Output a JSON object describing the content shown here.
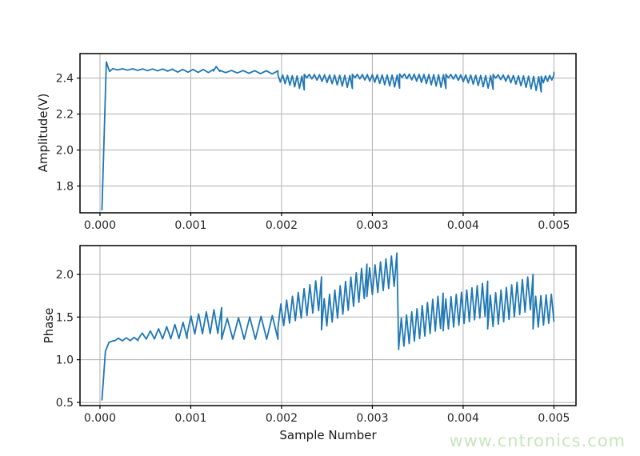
{
  "figure": {
    "background": "#ffffff"
  },
  "watermark": {
    "text": "www.cntronics.com",
    "color": "#c8e5bb"
  },
  "chart_data": [
    {
      "type": "line",
      "title": "",
      "ylabel": "Amplitude(V)",
      "xlabel": "",
      "xlim": [
        -0.00022,
        0.005243
      ],
      "ylim": [
        1.651,
        2.536
      ],
      "grid": true,
      "legend": "none",
      "line_color": "#1f77b4",
      "grid_color": "#b0b0b0",
      "spine_color": "#000000",
      "tick_color": "#262626",
      "xticks": [
        {
          "v": 0.0,
          "label": "0.000"
        },
        {
          "v": 0.001,
          "label": "0.001"
        },
        {
          "v": 0.002,
          "label": "0.002"
        },
        {
          "v": 0.003,
          "label": "0.003"
        },
        {
          "v": 0.004,
          "label": "0.004"
        },
        {
          "v": 0.005,
          "label": "0.005"
        }
      ],
      "yticks": [
        {
          "v": 1.8,
          "label": "1.8"
        },
        {
          "v": 2.0,
          "label": "2.0"
        },
        {
          "v": 2.2,
          "label": "2.2"
        },
        {
          "v": 2.4,
          "label": "2.4"
        }
      ],
      "series": [
        {
          "name": "amplitude",
          "segments": [
            {
              "x0": 2.2e-05,
              "y0": 1.668,
              "x1": 7e-05,
              "y1": 2.49,
              "teeth": 0
            },
            {
              "x0": 7e-05,
              "y0": 2.49,
              "x1": 0.000105,
              "y1": 2.437,
              "teeth": 0
            },
            {
              "x0": 0.000105,
              "y0": 2.437,
              "x1": 0.00014,
              "y1": 2.452,
              "teeth": 0
            },
            {
              "x0": 0.00014,
              "y0": 2.449,
              "x1": 0.0008,
              "y1": 2.444,
              "a0": 0.003,
              "a1": 0.006,
              "teeth": 6,
              "start": "high"
            },
            {
              "x0": 0.0008,
              "y0": 2.441,
              "x1": 0.00125,
              "y1": 2.439,
              "a0": 0.007,
              "a1": 0.009,
              "teeth": 4,
              "start": "high"
            },
            {
              "x0": 0.00125,
              "y0": 2.439,
              "x1": 0.00128,
              "y1": 2.464,
              "teeth": 0
            },
            {
              "x0": 0.00128,
              "y0": 2.464,
              "x1": 0.00132,
              "y1": 2.437,
              "teeth": 0
            },
            {
              "x0": 0.00132,
              "y0": 2.437,
              "x1": 0.00196,
              "y1": 2.431,
              "a0": 0.006,
              "a1": 0.009,
              "teeth": 5,
              "start": "high"
            },
            {
              "x0": 0.00196,
              "y0": 2.4,
              "x1": 0.00225,
              "y1": 2.372,
              "a0": 0.018,
              "a1": 0.038,
              "teeth": 5,
              "start": "high",
              "end": "low"
            },
            {
              "x0": 0.00225,
              "y0": 2.413,
              "x1": 0.00278,
              "y1": 2.378,
              "a0": 0.008,
              "a1": 0.036,
              "teeth": 9,
              "start": "high",
              "end": "low"
            },
            {
              "x0": 0.00278,
              "y0": 2.413,
              "x1": 0.0033,
              "y1": 2.38,
              "a0": 0.008,
              "a1": 0.036,
              "teeth": 9,
              "start": "high",
              "end": "low"
            },
            {
              "x0": 0.0033,
              "y0": 2.415,
              "x1": 0.00381,
              "y1": 2.38,
              "a0": 0.008,
              "a1": 0.038,
              "teeth": 9,
              "start": "high",
              "end": "low"
            },
            {
              "x0": 0.00381,
              "y0": 2.413,
              "x1": 0.00433,
              "y1": 2.375,
              "a0": 0.008,
              "a1": 0.038,
              "teeth": 9,
              "start": "high",
              "end": "low"
            },
            {
              "x0": 0.00433,
              "y0": 2.412,
              "x1": 0.00486,
              "y1": 2.365,
              "a0": 0.008,
              "a1": 0.042,
              "teeth": 9,
              "start": "high",
              "end": "low"
            },
            {
              "x0": 0.00486,
              "y0": 2.39,
              "x1": 0.005,
              "y1": 2.405,
              "a0": 0.02,
              "a1": 0.012,
              "teeth": 3,
              "start": "high"
            },
            {
              "x0": 0.005,
              "y0": 2.417,
              "x1": 0.005,
              "y1": 2.432,
              "teeth": 0
            }
          ]
        }
      ]
    },
    {
      "type": "line",
      "title": "",
      "ylabel": "Phase",
      "xlabel": "Sample Number",
      "xlim": [
        -0.00022,
        0.005243
      ],
      "ylim": [
        0.4625,
        2.337
      ],
      "grid": true,
      "legend": "none",
      "line_color": "#1f77b4",
      "grid_color": "#b0b0b0",
      "spine_color": "#000000",
      "tick_color": "#262626",
      "xticks": [
        {
          "v": 0.0,
          "label": "0.000"
        },
        {
          "v": 0.001,
          "label": "0.001"
        },
        {
          "v": 0.002,
          "label": "0.002"
        },
        {
          "v": 0.003,
          "label": "0.003"
        },
        {
          "v": 0.004,
          "label": "0.004"
        },
        {
          "v": 0.005,
          "label": "0.005"
        }
      ],
      "yticks": [
        {
          "v": 0.5,
          "label": "0.5"
        },
        {
          "v": 1.0,
          "label": "1.0"
        },
        {
          "v": 1.5,
          "label": "1.5"
        },
        {
          "v": 2.0,
          "label": "2.0"
        }
      ],
      "series": [
        {
          "name": "phase",
          "segments": [
            {
              "x0": 2.2e-05,
              "y0": 0.53,
              "x1": 6e-05,
              "y1": 1.1,
              "teeth": 0
            },
            {
              "x0": 6e-05,
              "y0": 1.1,
              "x1": 0.0001,
              "y1": 1.205,
              "teeth": 0
            },
            {
              "x0": 0.0001,
              "y0": 1.205,
              "x1": 0.00016,
              "y1": 1.225,
              "teeth": 0
            },
            {
              "x0": 0.00016,
              "y0": 1.235,
              "x1": 0.00042,
              "y1": 1.245,
              "a0": 0.015,
              "a1": 0.02,
              "teeth": 3,
              "start": "low"
            },
            {
              "x0": 0.00042,
              "y0": 1.27,
              "x1": 0.00096,
              "y1": 1.35,
              "a0": 0.03,
              "a1": 0.1,
              "teeth": 6,
              "start": "low"
            },
            {
              "x0": 0.00096,
              "y0": 1.4,
              "x1": 0.00134,
              "y1": 1.46,
              "a0": 0.1,
              "a1": 0.15,
              "teeth": 4,
              "start": "low",
              "end": "high"
            },
            {
              "x0": 0.00134,
              "y0": 1.36,
              "x1": 0.00196,
              "y1": 1.38,
              "a0": 0.12,
              "a1": 0.14,
              "teeth": 5,
              "start": "low"
            },
            {
              "x0": 0.00196,
              "y0": 1.5,
              "x1": 0.00244,
              "y1": 1.78,
              "a0": 0.13,
              "a1": 0.19,
              "teeth": 7,
              "start": "low",
              "end": "high"
            },
            {
              "x0": 0.00244,
              "y0": 1.52,
              "x1": 0.00294,
              "y1": 1.93,
              "a0": 0.17,
              "a1": 0.19,
              "teeth": 8,
              "start": "low",
              "end": "high"
            },
            {
              "x0": 0.00294,
              "y0": 1.9,
              "x1": 0.00327,
              "y1": 2.06,
              "a0": 0.16,
              "a1": 0.19,
              "teeth": 5,
              "start": "low",
              "end": "high"
            },
            {
              "x0": 0.00327,
              "y0": 2.25,
              "x1": 0.00329,
              "y1": 1.12,
              "teeth": 0
            },
            {
              "x0": 0.00329,
              "y0": 1.3,
              "x1": 0.00378,
              "y1": 1.58,
              "a0": 0.17,
              "a1": 0.2,
              "teeth": 8,
              "start": "low",
              "end": "high"
            },
            {
              "x0": 0.00378,
              "y0": 1.52,
              "x1": 0.00427,
              "y1": 1.72,
              "a0": 0.18,
              "a1": 0.2,
              "teeth": 8,
              "start": "low",
              "end": "high"
            },
            {
              "x0": 0.00427,
              "y0": 1.55,
              "x1": 0.00477,
              "y1": 1.8,
              "a0": 0.19,
              "a1": 0.2,
              "teeth": 8,
              "start": "low",
              "end": "high"
            },
            {
              "x0": 0.00477,
              "y0": 1.55,
              "x1": 0.005,
              "y1": 1.61,
              "a0": 0.19,
              "a1": 0.16,
              "teeth": 4,
              "start": "low"
            }
          ]
        }
      ]
    }
  ]
}
